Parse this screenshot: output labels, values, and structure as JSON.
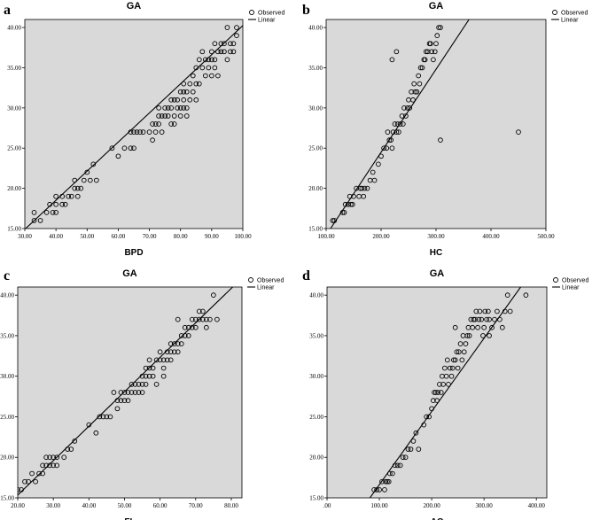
{
  "chart_data": [
    {
      "panel": "a",
      "type": "scatter",
      "title": "GA",
      "xlabel": "BPD",
      "ylabel": "",
      "xlim": [
        30,
        100
      ],
      "ylim": [
        15,
        41
      ],
      "xticks": [
        "30.00",
        "40.00",
        "50.00",
        "60.00",
        "70.00",
        "80.00",
        "90.00",
        "100.00"
      ],
      "yticks": [
        "15.00",
        "20.00",
        "25.00",
        "30.00",
        "35.00",
        "40.00"
      ],
      "legend": [
        "Observed",
        "Linear"
      ],
      "legend_position": "top-right",
      "fit_line": [
        [
          30.0,
          14.9
        ],
        [
          101.0,
          40.6
        ]
      ],
      "points": [
        [
          33,
          16
        ],
        [
          33,
          17
        ],
        [
          35,
          16
        ],
        [
          37,
          17
        ],
        [
          38,
          18
        ],
        [
          39,
          17
        ],
        [
          40,
          18
        ],
        [
          40,
          17
        ],
        [
          40,
          19
        ],
        [
          42,
          18
        ],
        [
          42,
          19
        ],
        [
          43,
          18
        ],
        [
          44,
          19
        ],
        [
          45,
          19
        ],
        [
          46,
          20
        ],
        [
          46,
          21
        ],
        [
          47,
          19
        ],
        [
          47,
          20
        ],
        [
          48,
          20
        ],
        [
          49,
          21
        ],
        [
          50,
          22
        ],
        [
          51,
          21
        ],
        [
          52,
          23
        ],
        [
          53,
          21
        ],
        [
          58,
          25
        ],
        [
          60,
          24
        ],
        [
          62,
          25
        ],
        [
          64,
          25
        ],
        [
          64,
          27
        ],
        [
          65,
          25
        ],
        [
          65,
          27
        ],
        [
          66,
          27
        ],
        [
          67,
          27
        ],
        [
          68,
          27
        ],
        [
          70,
          27
        ],
        [
          71,
          26
        ],
        [
          71,
          28
        ],
        [
          72,
          27
        ],
        [
          72,
          28
        ],
        [
          73,
          28
        ],
        [
          73,
          29
        ],
        [
          73,
          30
        ],
        [
          74,
          27
        ],
        [
          74,
          29
        ],
        [
          75,
          30
        ],
        [
          75,
          29
        ],
        [
          76,
          29
        ],
        [
          76,
          30
        ],
        [
          77,
          30
        ],
        [
          77,
          31
        ],
        [
          77,
          28
        ],
        [
          78,
          29
        ],
        [
          78,
          31
        ],
        [
          78,
          28
        ],
        [
          79,
          30
        ],
        [
          79,
          31
        ],
        [
          80,
          30
        ],
        [
          80,
          32
        ],
        [
          80,
          29
        ],
        [
          81,
          31
        ],
        [
          81,
          32
        ],
        [
          81,
          30
        ],
        [
          81,
          33
        ],
        [
          82,
          32
        ],
        [
          82,
          29
        ],
        [
          82,
          30
        ],
        [
          83,
          31
        ],
        [
          83,
          33
        ],
        [
          84,
          34
        ],
        [
          84,
          32
        ],
        [
          85,
          33
        ],
        [
          85,
          35
        ],
        [
          85,
          31
        ],
        [
          86,
          36
        ],
        [
          86,
          33
        ],
        [
          87,
          35
        ],
        [
          87,
          37
        ],
        [
          88,
          36
        ],
        [
          88,
          34
        ],
        [
          89,
          36
        ],
        [
          89,
          35
        ],
        [
          90,
          36
        ],
        [
          90,
          37
        ],
        [
          90,
          34
        ],
        [
          91,
          36
        ],
        [
          91,
          35
        ],
        [
          91,
          38
        ],
        [
          92,
          37
        ],
        [
          92,
          34
        ],
        [
          93,
          37
        ],
        [
          93,
          38
        ],
        [
          94,
          37
        ],
        [
          94,
          38
        ],
        [
          95,
          36
        ],
        [
          95,
          40
        ],
        [
          96,
          37
        ],
        [
          96,
          38
        ],
        [
          97,
          38
        ],
        [
          97,
          37
        ],
        [
          98,
          39
        ],
        [
          98,
          40
        ]
      ]
    },
    {
      "panel": "b",
      "type": "scatter",
      "title": "GA",
      "xlabel": "HC",
      "ylabel": "",
      "xlim": [
        100,
        500
      ],
      "ylim": [
        15,
        41
      ],
      "xticks": [
        "100.00",
        "200.00",
        "300.00",
        "400.00",
        "500.00"
      ],
      "yticks": [
        "15.00",
        "20.00",
        "25.00",
        "30.00",
        "35.00",
        "40.00"
      ],
      "legend": [
        "Observed",
        "Linear"
      ],
      "legend_position": "top-right",
      "fit_line": [
        [
          108.0,
          15.0
        ],
        [
          360.0,
          41.0
        ]
      ],
      "points": [
        [
          112,
          16
        ],
        [
          115,
          16
        ],
        [
          130,
          17
        ],
        [
          133,
          17
        ],
        [
          135,
          18
        ],
        [
          140,
          18
        ],
        [
          143,
          19
        ],
        [
          145,
          18
        ],
        [
          148,
          18
        ],
        [
          150,
          19
        ],
        [
          155,
          20
        ],
        [
          160,
          19
        ],
        [
          162,
          20
        ],
        [
          165,
          20
        ],
        [
          168,
          19
        ],
        [
          170,
          20
        ],
        [
          175,
          20
        ],
        [
          180,
          21
        ],
        [
          185,
          22
        ],
        [
          188,
          21
        ],
        [
          195,
          23
        ],
        [
          200,
          24
        ],
        [
          205,
          25
        ],
        [
          210,
          25
        ],
        [
          212,
          27
        ],
        [
          215,
          26
        ],
        [
          218,
          26
        ],
        [
          220,
          25
        ],
        [
          222,
          27
        ],
        [
          225,
          28
        ],
        [
          228,
          27
        ],
        [
          230,
          28
        ],
        [
          232,
          27
        ],
        [
          235,
          28
        ],
        [
          238,
          29
        ],
        [
          240,
          28
        ],
        [
          242,
          30
        ],
        [
          245,
          29
        ],
        [
          248,
          30
        ],
        [
          250,
          31
        ],
        [
          252,
          30
        ],
        [
          255,
          32
        ],
        [
          258,
          31
        ],
        [
          260,
          33
        ],
        [
          262,
          32
        ],
        [
          265,
          32
        ],
        [
          268,
          34
        ],
        [
          270,
          33
        ],
        [
          272,
          35
        ],
        [
          275,
          35
        ],
        [
          278,
          36
        ],
        [
          280,
          36
        ],
        [
          282,
          37
        ],
        [
          285,
          37
        ],
        [
          288,
          38
        ],
        [
          290,
          38
        ],
        [
          292,
          37
        ],
        [
          295,
          36
        ],
        [
          298,
          37
        ],
        [
          300,
          38
        ],
        [
          302,
          39
        ],
        [
          305,
          40
        ],
        [
          308,
          40
        ],
        [
          220,
          36
        ],
        [
          228,
          37
        ],
        [
          308,
          26
        ],
        [
          450,
          27
        ]
      ]
    },
    {
      "panel": "c",
      "type": "scatter",
      "title": "GA",
      "xlabel": "FL",
      "ylabel": "",
      "xlim": [
        20,
        83
      ],
      "ylim": [
        15,
        41
      ],
      "xticks": [
        "20.00",
        "30.00",
        "40.00",
        "50.00",
        "60.00",
        "70.00",
        "80.00"
      ],
      "yticks": [
        "15.00",
        "20.00",
        "25.00",
        "30.00",
        "35.00",
        "40.00"
      ],
      "legend": [
        "Observed",
        "Linear"
      ],
      "legend_position": "top-right",
      "fit_line": [
        [
          19.2,
          15.0
        ],
        [
          80.4,
          41.0
        ]
      ],
      "points": [
        [
          20,
          16
        ],
        [
          21,
          16
        ],
        [
          22,
          17
        ],
        [
          23,
          17
        ],
        [
          24,
          18
        ],
        [
          25,
          17
        ],
        [
          26,
          18
        ],
        [
          27,
          18
        ],
        [
          27,
          19
        ],
        [
          28,
          19
        ],
        [
          28,
          20
        ],
        [
          29,
          19
        ],
        [
          29,
          20
        ],
        [
          30,
          19
        ],
        [
          30,
          20
        ],
        [
          31,
          19
        ],
        [
          31,
          20
        ],
        [
          33,
          20
        ],
        [
          34,
          21
        ],
        [
          35,
          21
        ],
        [
          36,
          22
        ],
        [
          40,
          24
        ],
        [
          42,
          23
        ],
        [
          43,
          25
        ],
        [
          44,
          25
        ],
        [
          45,
          25
        ],
        [
          46,
          25
        ],
        [
          47,
          28
        ],
        [
          48,
          26
        ],
        [
          48,
          27
        ],
        [
          49,
          27
        ],
        [
          49,
          28
        ],
        [
          50,
          27
        ],
        [
          50,
          28
        ],
        [
          51,
          27
        ],
        [
          51,
          28
        ],
        [
          52,
          28
        ],
        [
          52,
          29
        ],
        [
          53,
          28
        ],
        [
          53,
          29
        ],
        [
          54,
          28
        ],
        [
          54,
          29
        ],
        [
          55,
          28
        ],
        [
          55,
          30
        ],
        [
          55,
          29
        ],
        [
          56,
          29
        ],
        [
          56,
          30
        ],
        [
          56,
          31
        ],
        [
          57,
          30
        ],
        [
          57,
          31
        ],
        [
          57,
          32
        ],
        [
          58,
          30
        ],
        [
          58,
          31
        ],
        [
          59,
          32
        ],
        [
          59,
          29
        ],
        [
          60,
          32
        ],
        [
          60,
          33
        ],
        [
          61,
          31
        ],
        [
          61,
          32
        ],
        [
          61,
          30
        ],
        [
          62,
          32
        ],
        [
          62,
          33
        ],
        [
          63,
          33
        ],
        [
          63,
          34
        ],
        [
          63,
          32
        ],
        [
          64,
          33
        ],
        [
          64,
          34
        ],
        [
          65,
          37
        ],
        [
          65,
          34
        ],
        [
          65,
          33
        ],
        [
          66,
          34
        ],
        [
          66,
          35
        ],
        [
          67,
          35
        ],
        [
          67,
          36
        ],
        [
          68,
          35
        ],
        [
          68,
          36
        ],
        [
          69,
          36
        ],
        [
          69,
          37
        ],
        [
          70,
          37
        ],
        [
          70,
          36
        ],
        [
          71,
          38
        ],
        [
          71,
          37
        ],
        [
          72,
          37
        ],
        [
          72,
          38
        ],
        [
          73,
          37
        ],
        [
          73,
          36
        ],
        [
          74,
          37
        ],
        [
          75,
          40
        ],
        [
          76,
          37
        ]
      ]
    },
    {
      "panel": "d",
      "type": "scatter",
      "title": "GA",
      "xlabel": "AC",
      "ylabel": "",
      "xlim": [
        0,
        420
      ],
      "ylim": [
        15,
        41
      ],
      "xticks": [
        ".00",
        "100.00",
        "200.00",
        "300.00",
        "400.00"
      ],
      "yticks": [
        "15.00",
        "20.00",
        "25.00",
        "30.00",
        "35.00",
        "40.00"
      ],
      "legend": [
        "Observed",
        "Linear"
      ],
      "legend_position": "top-right",
      "fit_line": [
        [
          82.0,
          15.0
        ],
        [
          370.0,
          41.0
        ]
      ],
      "points": [
        [
          90,
          16
        ],
        [
          95,
          16
        ],
        [
          100,
          16
        ],
        [
          105,
          17
        ],
        [
          110,
          16
        ],
        [
          112,
          17
        ],
        [
          115,
          17
        ],
        [
          118,
          17
        ],
        [
          120,
          18
        ],
        [
          125,
          18
        ],
        [
          130,
          19
        ],
        [
          135,
          19
        ],
        [
          140,
          19
        ],
        [
          145,
          20
        ],
        [
          150,
          20
        ],
        [
          155,
          21
        ],
        [
          160,
          21
        ],
        [
          165,
          22
        ],
        [
          170,
          23
        ],
        [
          175,
          21
        ],
        [
          185,
          24
        ],
        [
          190,
          25
        ],
        [
          195,
          25
        ],
        [
          200,
          26
        ],
        [
          203,
          27
        ],
        [
          205,
          28
        ],
        [
          208,
          28
        ],
        [
          210,
          27
        ],
        [
          212,
          28
        ],
        [
          215,
          29
        ],
        [
          218,
          28
        ],
        [
          220,
          30
        ],
        [
          222,
          29
        ],
        [
          225,
          31
        ],
        [
          228,
          30
        ],
        [
          230,
          32
        ],
        [
          232,
          29
        ],
        [
          235,
          31
        ],
        [
          238,
          30
        ],
        [
          240,
          31
        ],
        [
          242,
          32
        ],
        [
          245,
          32
        ],
        [
          248,
          33
        ],
        [
          250,
          31
        ],
        [
          252,
          33
        ],
        [
          255,
          34
        ],
        [
          258,
          32
        ],
        [
          260,
          35
        ],
        [
          262,
          33
        ],
        [
          265,
          34
        ],
        [
          268,
          35
        ],
        [
          270,
          36
        ],
        [
          272,
          35
        ],
        [
          275,
          37
        ],
        [
          278,
          36
        ],
        [
          280,
          37
        ],
        [
          283,
          37
        ],
        [
          285,
          38
        ],
        [
          288,
          36
        ],
        [
          290,
          37
        ],
        [
          292,
          38
        ],
        [
          295,
          37
        ],
        [
          298,
          35
        ],
        [
          300,
          36
        ],
        [
          302,
          38
        ],
        [
          305,
          37
        ],
        [
          308,
          38
        ],
        [
          310,
          37
        ],
        [
          315,
          36
        ],
        [
          320,
          37
        ],
        [
          325,
          38
        ],
        [
          330,
          37
        ],
        [
          335,
          36
        ],
        [
          340,
          38
        ],
        [
          345,
          40
        ],
        [
          350,
          38
        ],
        [
          380,
          40
        ],
        [
          245,
          36
        ],
        [
          310,
          35
        ]
      ]
    }
  ]
}
